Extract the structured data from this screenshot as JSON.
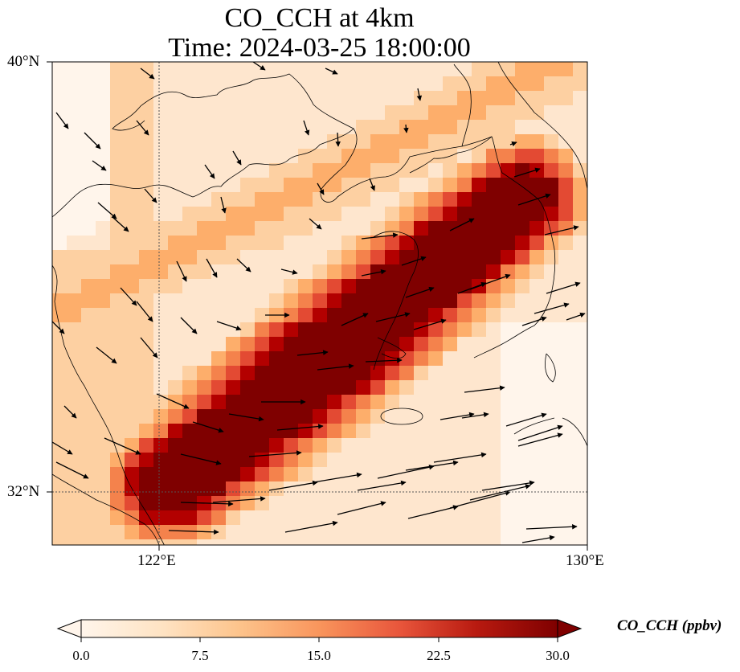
{
  "title_line1": "CO_CCH at 4km",
  "title_line2": "Time: 2024-03-25 18:00:00",
  "lat_labels": [
    "40°N",
    "32°N"
  ],
  "lon_labels": [
    "122°E",
    "130°E"
  ],
  "colorbar": {
    "label": "CO_CCH (ppbv)",
    "ticks": [
      "0.0",
      "7.5",
      "15.0",
      "22.5",
      "30.0"
    ],
    "colors": [
      "#fff5eb",
      "#fdd3a7",
      "#fdae6b",
      "#f16913",
      "#d94801",
      "#a50f15",
      "#7f0000"
    ]
  },
  "map": {
    "lon_range": [
      120,
      130
    ],
    "lat_range": [
      31,
      40
    ],
    "gridlines": {
      "lon": [
        122
      ],
      "lat": [
        32
      ]
    },
    "palette": [
      "#fff5eb",
      "#fee6ce",
      "#fdd0a2",
      "#fdae6b",
      "#f4824c",
      "#e34a33",
      "#b30000",
      "#7f0000"
    ]
  }
}
